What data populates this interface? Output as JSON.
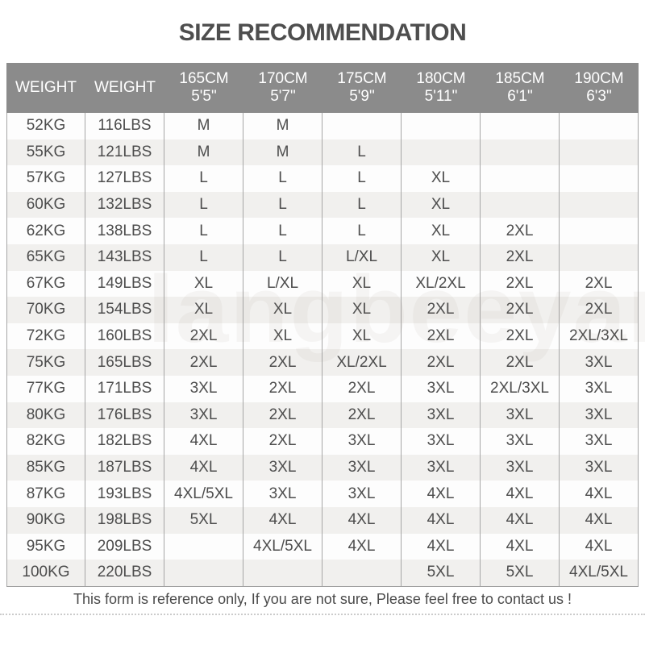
{
  "title": "SIZE RECOMMENDATION",
  "watermark": "langbeeyar",
  "colors": {
    "header_bg": "#8b8b8b",
    "header_text": "#ffffff",
    "stripe": "#f1f0ee",
    "body_text": "#4d4d4d",
    "border": "#a6a6a6",
    "title_text": "#4e4e4e"
  },
  "table": {
    "columns": [
      {
        "label": "WEIGHT",
        "sub": ""
      },
      {
        "label": "WEIGHT",
        "sub": ""
      },
      {
        "label": "165CM",
        "sub": "5'5\""
      },
      {
        "label": "170CM",
        "sub": "5'7\""
      },
      {
        "label": "175CM",
        "sub": "5'9\""
      },
      {
        "label": "180CM",
        "sub": "5'11\""
      },
      {
        "label": "185CM",
        "sub": "6'1\""
      },
      {
        "label": "190CM",
        "sub": "6'3\""
      }
    ],
    "rows": [
      {
        "kg": "52KG",
        "lbs": "116LBS",
        "sizes": [
          "M",
          "M",
          "",
          "",
          "",
          ""
        ]
      },
      {
        "kg": "55KG",
        "lbs": "121LBS",
        "sizes": [
          "M",
          "M",
          "L",
          "",
          "",
          ""
        ]
      },
      {
        "kg": "57KG",
        "lbs": "127LBS",
        "sizes": [
          "L",
          "L",
          "L",
          "XL",
          "",
          ""
        ]
      },
      {
        "kg": "60KG",
        "lbs": "132LBS",
        "sizes": [
          "L",
          "L",
          "L",
          "XL",
          "",
          ""
        ]
      },
      {
        "kg": "62KG",
        "lbs": "138LBS",
        "sizes": [
          "L",
          "L",
          "L",
          "XL",
          "2XL",
          ""
        ]
      },
      {
        "kg": "65KG",
        "lbs": "143LBS",
        "sizes": [
          "L",
          "L",
          "L/XL",
          "XL",
          "2XL",
          ""
        ]
      },
      {
        "kg": "67KG",
        "lbs": "149LBS",
        "sizes": [
          "XL",
          "L/XL",
          "XL",
          "XL/2XL",
          "2XL",
          "2XL"
        ]
      },
      {
        "kg": "70KG",
        "lbs": "154LBS",
        "sizes": [
          "XL",
          "XL",
          "XL",
          "2XL",
          "2XL",
          "2XL"
        ]
      },
      {
        "kg": "72KG",
        "lbs": "160LBS",
        "sizes": [
          "2XL",
          "XL",
          "XL",
          "2XL",
          "2XL",
          "2XL/3XL"
        ]
      },
      {
        "kg": "75KG",
        "lbs": "165LBS",
        "sizes": [
          "2XL",
          "2XL",
          "XL/2XL",
          "2XL",
          "2XL",
          "3XL"
        ]
      },
      {
        "kg": "77KG",
        "lbs": "171LBS",
        "sizes": [
          "3XL",
          "2XL",
          "2XL",
          "3XL",
          "2XL/3XL",
          "3XL"
        ]
      },
      {
        "kg": "80KG",
        "lbs": "176LBS",
        "sizes": [
          "3XL",
          "2XL",
          "2XL",
          "3XL",
          "3XL",
          "3XL"
        ]
      },
      {
        "kg": "82KG",
        "lbs": "182LBS",
        "sizes": [
          "4XL",
          "2XL",
          "3XL",
          "3XL",
          "3XL",
          "3XL"
        ]
      },
      {
        "kg": "85KG",
        "lbs": "187LBS",
        "sizes": [
          "4XL",
          "3XL",
          "3XL",
          "3XL",
          "3XL",
          "3XL"
        ]
      },
      {
        "kg": "87KG",
        "lbs": "193LBS",
        "sizes": [
          "4XL/5XL",
          "3XL",
          "3XL",
          "4XL",
          "4XL",
          "4XL"
        ]
      },
      {
        "kg": "90KG",
        "lbs": "198LBS",
        "sizes": [
          "5XL",
          "4XL",
          "4XL",
          "4XL",
          "4XL",
          "4XL"
        ]
      },
      {
        "kg": "95KG",
        "lbs": "209LBS",
        "sizes": [
          "",
          "4XL/5XL",
          "4XL",
          "4XL",
          "4XL",
          "4XL"
        ]
      },
      {
        "kg": "100KG",
        "lbs": "220LBS",
        "sizes": [
          "",
          "",
          "",
          "5XL",
          "5XL",
          "4XL/5XL"
        ]
      }
    ]
  },
  "footer": {
    "note": "This form is reference only, If you are not sure, Please feel free to contact us !"
  }
}
